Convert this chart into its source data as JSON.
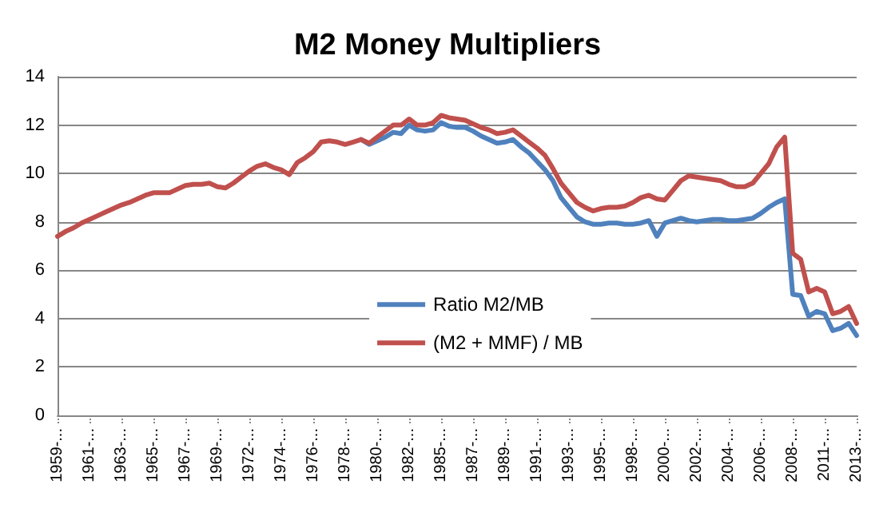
{
  "chart_data": {
    "type": "line",
    "title": "M2 Money Multipliers",
    "categories": [
      "1959-...",
      null,
      null,
      null,
      "1961-...",
      null,
      null,
      null,
      "1963-...",
      null,
      null,
      null,
      "1965-...",
      null,
      null,
      null,
      "1967-...",
      null,
      null,
      null,
      "1969-...",
      null,
      null,
      null,
      "1972-...",
      null,
      null,
      null,
      "1974-...",
      null,
      null,
      null,
      "1976-...",
      null,
      null,
      null,
      "1978-...",
      null,
      null,
      null,
      "1980-...",
      null,
      null,
      null,
      "1982-...",
      null,
      null,
      null,
      "1985-...",
      null,
      null,
      null,
      "1987-...",
      null,
      null,
      null,
      "1989-...",
      null,
      null,
      null,
      "1991-...",
      null,
      null,
      null,
      "1993-...",
      null,
      null,
      null,
      "1995-...",
      null,
      null,
      null,
      "1998-...",
      null,
      null,
      null,
      "2000-...",
      null,
      null,
      null,
      "2002-...",
      null,
      null,
      null,
      "2004-...",
      null,
      null,
      null,
      "2006-...",
      null,
      null,
      null,
      "2008-...",
      null,
      null,
      null,
      "2011-...",
      null,
      null,
      null,
      "2013-..."
    ],
    "ylim": [
      0,
      14
    ],
    "yticks": [
      0,
      2,
      4,
      6,
      8,
      10,
      12,
      14
    ],
    "grid": "y",
    "legend": "center",
    "marker": "none",
    "line_style": "solid",
    "series": [
      {
        "name": "Ratio M2/MB",
        "color": "#4f81bd",
        "values": [
          null,
          null,
          null,
          null,
          null,
          null,
          null,
          null,
          null,
          null,
          null,
          null,
          null,
          null,
          null,
          null,
          null,
          null,
          null,
          null,
          null,
          null,
          null,
          null,
          null,
          null,
          null,
          null,
          null,
          null,
          null,
          null,
          null,
          null,
          null,
          null,
          null,
          null,
          11.4,
          11.2,
          11.35,
          11.5,
          11.7,
          11.65,
          12.0,
          11.8,
          11.75,
          11.8,
          12.1,
          11.95,
          11.9,
          11.9,
          11.75,
          11.55,
          11.4,
          11.25,
          11.3,
          11.4,
          11.1,
          10.85,
          10.5,
          10.15,
          9.7,
          9.0,
          8.6,
          8.2,
          8.0,
          7.9,
          7.9,
          7.95,
          7.95,
          7.9,
          7.9,
          7.95,
          8.05,
          7.4,
          7.95,
          8.05,
          8.15,
          8.05,
          8.0,
          8.05,
          8.1,
          8.1,
          8.05,
          8.05,
          8.1,
          8.15,
          8.35,
          8.6,
          8.8,
          8.95,
          5.0,
          4.95,
          4.1,
          4.3,
          4.2,
          3.5,
          3.6,
          3.8,
          3.3
        ]
      },
      {
        "name": "(M2 + MMF) / MB",
        "color": "#c0504d",
        "values": [
          7.4,
          7.6,
          7.75,
          7.95,
          8.1,
          8.25,
          8.4,
          8.55,
          8.7,
          8.8,
          8.95,
          9.1,
          9.2,
          9.2,
          9.2,
          9.35,
          9.5,
          9.55,
          9.55,
          9.6,
          9.45,
          9.4,
          9.6,
          9.85,
          10.1,
          10.3,
          10.4,
          10.25,
          10.15,
          9.95,
          10.45,
          10.65,
          10.9,
          11.3,
          11.35,
          11.3,
          11.2,
          11.3,
          11.4,
          11.25,
          11.5,
          11.75,
          12.0,
          12.0,
          12.25,
          12.0,
          12.0,
          12.1,
          12.4,
          12.3,
          12.25,
          12.2,
          12.05,
          11.9,
          11.8,
          11.65,
          11.7,
          11.8,
          11.55,
          11.3,
          11.05,
          10.75,
          10.2,
          9.6,
          9.2,
          8.8,
          8.6,
          8.45,
          8.55,
          8.6,
          8.6,
          8.65,
          8.8,
          9.0,
          9.1,
          8.95,
          8.9,
          9.3,
          9.7,
          9.9,
          9.85,
          9.8,
          9.75,
          9.7,
          9.55,
          9.45,
          9.45,
          9.6,
          10.0,
          10.4,
          11.1,
          11.5,
          6.7,
          6.45,
          5.1,
          5.25,
          5.1,
          4.2,
          4.3,
          4.5,
          3.8
        ]
      }
    ]
  }
}
